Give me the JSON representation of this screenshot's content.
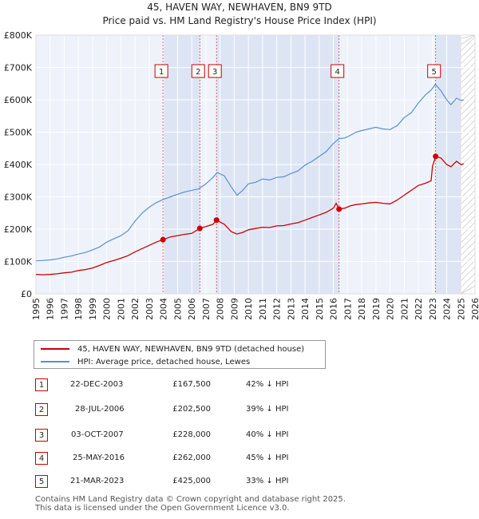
{
  "chart_data": {
    "type": "line",
    "title": "45, HAVEN WAY, NEWHAVEN, BN9 9TD",
    "subtitle": "Price paid vs. HM Land Registry's House Price Index (HPI)",
    "xlim": [
      1995,
      2026
    ],
    "ylim": [
      0,
      800000
    ],
    "y_ticks": [
      {
        "value": 0,
        "label": "£0"
      },
      {
        "value": 100000,
        "label": "£100K"
      },
      {
        "value": 200000,
        "label": "£200K"
      },
      {
        "value": 300000,
        "label": "£300K"
      },
      {
        "value": 400000,
        "label": "£400K"
      },
      {
        "value": 500000,
        "label": "£500K"
      },
      {
        "value": 600000,
        "label": "£600K"
      },
      {
        "value": 700000,
        "label": "£700K"
      },
      {
        "value": 800000,
        "label": "£800K"
      }
    ],
    "x_ticks": [
      "1995",
      "1996",
      "1997",
      "1998",
      "1999",
      "2000",
      "2001",
      "2002",
      "2003",
      "2004",
      "2005",
      "2006",
      "2007",
      "2008",
      "2009",
      "2010",
      "2011",
      "2012",
      "2013",
      "2014",
      "2015",
      "2016",
      "2017",
      "2018",
      "2019",
      "2020",
      "2021",
      "2022",
      "2023",
      "2024",
      "2025",
      "2026"
    ],
    "future_from": 2025.0,
    "series": [
      {
        "name": "HPI: Average price, detached house, Lewes",
        "color": "#5b8fd0",
        "x": [
          1995.0,
          1995.5,
          1996.0,
          1996.5,
          1997.0,
          1997.5,
          1998.0,
          1998.5,
          1999.0,
          1999.5,
          2000.0,
          2000.5,
          2001.0,
          2001.5,
          2002.0,
          2002.5,
          2003.0,
          2003.5,
          2004.0,
          2004.5,
          2005.0,
          2005.5,
          2006.0,
          2006.5,
          2007.0,
          2007.5,
          2007.8,
          2008.3,
          2008.8,
          2009.2,
          2009.6,
          2010.0,
          2010.5,
          2011.0,
          2011.5,
          2012.0,
          2012.5,
          2013.0,
          2013.5,
          2014.0,
          2014.5,
          2015.0,
          2015.5,
          2016.0,
          2016.4,
          2016.8,
          2017.2,
          2017.6,
          2018.0,
          2018.5,
          2019.0,
          2019.5,
          2020.0,
          2020.5,
          2021.0,
          2021.5,
          2022.0,
          2022.5,
          2022.9,
          2023.2,
          2023.6,
          2024.0,
          2024.3,
          2024.7,
          2025.0,
          2025.2
        ],
        "values": [
          102000,
          103000,
          105000,
          108000,
          113000,
          117000,
          123000,
          128000,
          136000,
          145000,
          160000,
          170000,
          180000,
          195000,
          225000,
          250000,
          268000,
          282000,
          292000,
          300000,
          308000,
          315000,
          320000,
          325000,
          340000,
          360000,
          375000,
          365000,
          330000,
          305000,
          320000,
          340000,
          345000,
          355000,
          352000,
          360000,
          362000,
          372000,
          380000,
          398000,
          410000,
          425000,
          440000,
          465000,
          480000,
          482000,
          490000,
          500000,
          505000,
          510000,
          515000,
          510000,
          508000,
          520000,
          545000,
          560000,
          590000,
          615000,
          630000,
          648000,
          628000,
          600000,
          585000,
          605000,
          598000,
          600000
        ]
      },
      {
        "name": "45, HAVEN WAY, NEWHAVEN, BN9 9TD (detached house)",
        "color": "#cc0000",
        "x": [
          1995.0,
          1995.5,
          1996.0,
          1996.5,
          1997.0,
          1997.5,
          1998.0,
          1998.5,
          1999.0,
          1999.5,
          2000.0,
          2000.5,
          2001.0,
          2001.5,
          2002.0,
          2002.5,
          2003.0,
          2003.5,
          2003.97,
          2004.5,
          2005.0,
          2005.5,
          2006.0,
          2006.57,
          2007.0,
          2007.5,
          2007.75,
          2008.3,
          2008.8,
          2009.2,
          2009.6,
          2010.0,
          2010.5,
          2011.0,
          2011.5,
          2012.0,
          2012.5,
          2013.0,
          2013.5,
          2014.0,
          2014.5,
          2015.0,
          2015.5,
          2016.0,
          2016.2,
          2016.4,
          2016.8,
          2017.2,
          2017.6,
          2018.0,
          2018.5,
          2019.0,
          2019.5,
          2020.0,
          2020.5,
          2021.0,
          2021.5,
          2022.0,
          2022.5,
          2022.9,
          2023.0,
          2023.22,
          2023.6,
          2024.0,
          2024.3,
          2024.7,
          2025.0,
          2025.2
        ],
        "values": [
          60000,
          59000,
          60000,
          62000,
          65000,
          67000,
          72000,
          75000,
          80000,
          88000,
          97000,
          103000,
          110000,
          118000,
          130000,
          140000,
          150000,
          160000,
          167500,
          176000,
          180000,
          184000,
          187000,
          202500,
          208000,
          215000,
          228000,
          215000,
          192000,
          185000,
          190000,
          198000,
          202000,
          206000,
          205000,
          210000,
          211000,
          216000,
          220000,
          228000,
          236000,
          244000,
          252000,
          265000,
          280000,
          262000,
          265000,
          272000,
          276000,
          278000,
          281000,
          283000,
          280000,
          278000,
          290000,
          305000,
          320000,
          335000,
          342000,
          350000,
          395000,
          425000,
          420000,
          400000,
          393000,
          410000,
          400000,
          402000
        ]
      }
    ],
    "markers": [
      {
        "label": "1",
        "x": 2003.97,
        "value": 167500
      },
      {
        "label": "2",
        "x": 2006.57,
        "value": 202500
      },
      {
        "label": "3",
        "x": 2007.75,
        "value": 228000
      },
      {
        "label": "4",
        "x": 2016.4,
        "value": 262000
      },
      {
        "label": "5",
        "x": 2023.22,
        "value": 425000
      }
    ]
  },
  "legend": {
    "property_label": "45, HAVEN WAY, NEWHAVEN, BN9 9TD (detached house)",
    "hpi_label": "HPI: Average price, detached house, Lewes",
    "property_color": "#cc0000",
    "hpi_color": "#5b8fd0"
  },
  "transactions": [
    {
      "num": "1",
      "date": "22-DEC-2003",
      "price": "£167,500",
      "hpi": "42% ↓ HPI"
    },
    {
      "num": "2",
      "date": "28-JUL-2006",
      "price": "£202,500",
      "hpi": "39% ↓ HPI"
    },
    {
      "num": "3",
      "date": "03-OCT-2007",
      "price": "£228,000",
      "hpi": "40% ↓ HPI"
    },
    {
      "num": "4",
      "date": "25-MAY-2016",
      "price": "£262,000",
      "hpi": "45% ↓ HPI"
    },
    {
      "num": "5",
      "date": "21-MAR-2023",
      "price": "£425,000",
      "hpi": "33% ↓ HPI"
    }
  ],
  "footer": {
    "line1": "Contains HM Land Registry data © Crown copyright and database right 2025.",
    "line2": "This data is licensed under the Open Government Licence v3.0."
  }
}
